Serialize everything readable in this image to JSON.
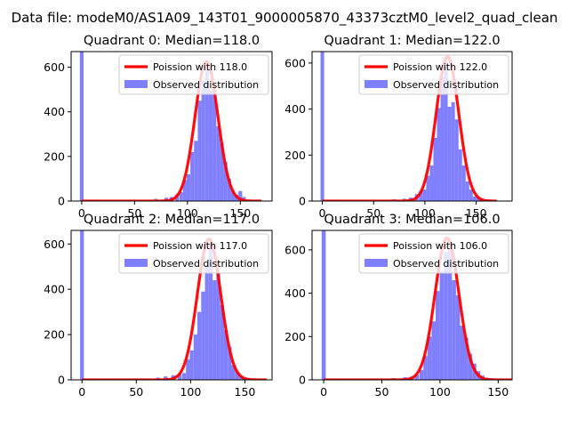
{
  "suptitle": "Data file: modeM0/AS1A09_143T01_9000005870_43373cztM0_level2_quad_clean",
  "colors": {
    "poisson": "#ff0000",
    "observed": "#8080ff"
  },
  "chart_data": [
    {
      "type": "bar",
      "title": "Quadrant 0: Median=118.0",
      "xlim": [
        -10,
        180
      ],
      "ylim": [
        0,
        670
      ],
      "xticks": [
        0,
        50,
        100,
        150
      ],
      "yticks": [
        0,
        200,
        400,
        600
      ],
      "legend": [
        "Poission with 118.0",
        "Observed distribution"
      ],
      "legend_position": "top-right",
      "median": 118,
      "series": [
        {
          "name": "Observed distribution",
          "type": "histogram",
          "bin_width": 3.5,
          "bins": [
            {
              "x": 0,
              "y": 680
            },
            {
              "x": 70,
              "y": 10
            },
            {
              "x": 80,
              "y": 15
            },
            {
              "x": 85,
              "y": 18
            },
            {
              "x": 90,
              "y": 30
            },
            {
              "x": 94,
              "y": 40
            },
            {
              "x": 97.5,
              "y": 95
            },
            {
              "x": 101,
              "y": 120
            },
            {
              "x": 104.5,
              "y": 220
            },
            {
              "x": 108,
              "y": 270
            },
            {
              "x": 111.5,
              "y": 450
            },
            {
              "x": 115,
              "y": 540
            },
            {
              "x": 118.5,
              "y": 590
            },
            {
              "x": 122,
              "y": 495
            },
            {
              "x": 125.5,
              "y": 485
            },
            {
              "x": 129,
              "y": 335
            },
            {
              "x": 132.5,
              "y": 260
            },
            {
              "x": 136,
              "y": 175
            },
            {
              "x": 139.5,
              "y": 100
            },
            {
              "x": 143,
              "y": 45
            },
            {
              "x": 146.5,
              "y": 28
            },
            {
              "x": 150,
              "y": 45
            },
            {
              "x": 153.5,
              "y": 18
            }
          ]
        },
        {
          "name": "Poission with 118.0",
          "type": "line",
          "peak": 625,
          "sigma": 10.86
        }
      ]
    },
    {
      "type": "bar",
      "title": "Quadrant 1: Median=122.0",
      "xlim": [
        -10,
        185
      ],
      "ylim": [
        0,
        650
      ],
      "xticks": [
        0,
        50,
        100,
        150
      ],
      "yticks": [
        0,
        200,
        400,
        600
      ],
      "legend": [
        "Poission with 122.0",
        "Observed distribution"
      ],
      "legend_position": "top-right",
      "median": 122,
      "series": [
        {
          "name": "Observed distribution",
          "type": "histogram",
          "bin_width": 3.5,
          "bins": [
            {
              "x": 0,
              "y": 660
            },
            {
              "x": 70,
              "y": 8
            },
            {
              "x": 80,
              "y": 10
            },
            {
              "x": 86,
              "y": 15
            },
            {
              "x": 92,
              "y": 30
            },
            {
              "x": 96,
              "y": 45
            },
            {
              "x": 99.5,
              "y": 50
            },
            {
              "x": 103,
              "y": 110
            },
            {
              "x": 106.5,
              "y": 155
            },
            {
              "x": 110,
              "y": 275
            },
            {
              "x": 113.5,
              "y": 405
            },
            {
              "x": 117,
              "y": 540
            },
            {
              "x": 120.5,
              "y": 610
            },
            {
              "x": 124,
              "y": 410
            },
            {
              "x": 127.5,
              "y": 430
            },
            {
              "x": 131,
              "y": 355
            },
            {
              "x": 134.5,
              "y": 225
            },
            {
              "x": 138,
              "y": 155
            },
            {
              "x": 141.5,
              "y": 85
            },
            {
              "x": 145,
              "y": 50
            },
            {
              "x": 148.5,
              "y": 20
            },
            {
              "x": 152,
              "y": 18
            },
            {
              "x": 155.5,
              "y": 10
            }
          ]
        },
        {
          "name": "Poission with 122.0",
          "type": "line",
          "peak": 628,
          "sigma": 11.05
        }
      ]
    },
    {
      "type": "bar",
      "title": "Quadrant 2: Median=117.0",
      "xlim": [
        -10,
        175
      ],
      "ylim": [
        0,
        660
      ],
      "xticks": [
        0,
        50,
        100,
        150
      ],
      "yticks": [
        0,
        200,
        400,
        600
      ],
      "legend": [
        "Poission with 117.0",
        "Observed distribution"
      ],
      "legend_position": "top-right",
      "median": 117,
      "series": [
        {
          "name": "Observed distribution",
          "type": "histogram",
          "bin_width": 3.5,
          "bins": [
            {
              "x": 0,
              "y": 670
            },
            {
              "x": 70,
              "y": 10
            },
            {
              "x": 77,
              "y": 15
            },
            {
              "x": 84,
              "y": 20
            },
            {
              "x": 90,
              "y": 25
            },
            {
              "x": 94,
              "y": 30
            },
            {
              "x": 97.5,
              "y": 90
            },
            {
              "x": 101,
              "y": 130
            },
            {
              "x": 104.5,
              "y": 200
            },
            {
              "x": 108,
              "y": 300
            },
            {
              "x": 111.5,
              "y": 390
            },
            {
              "x": 115,
              "y": 510
            },
            {
              "x": 118.5,
              "y": 600
            },
            {
              "x": 122,
              "y": 440
            },
            {
              "x": 125.5,
              "y": 470
            },
            {
              "x": 129,
              "y": 330
            },
            {
              "x": 132.5,
              "y": 220
            },
            {
              "x": 136,
              "y": 145
            },
            {
              "x": 139.5,
              "y": 65
            },
            {
              "x": 143,
              "y": 35
            },
            {
              "x": 146.5,
              "y": 18
            },
            {
              "x": 150,
              "y": 10
            },
            {
              "x": 153.5,
              "y": 8
            }
          ]
        },
        {
          "name": "Poission with 117.0",
          "type": "line",
          "peak": 622,
          "sigma": 10.82
        }
      ]
    },
    {
      "type": "bar",
      "title": "Quadrant 3: Median=106.0",
      "xlim": [
        -10,
        162
      ],
      "ylim": [
        0,
        690
      ],
      "xticks": [
        0,
        50,
        100,
        150
      ],
      "yticks": [
        0,
        200,
        400,
        600
      ],
      "legend": [
        "Poission with 106.0",
        "Observed distribution"
      ],
      "legend_position": "top-right",
      "median": 106,
      "series": [
        {
          "name": "Observed distribution",
          "type": "histogram",
          "bin_width": 3.5,
          "bins": [
            {
              "x": 0,
              "y": 690
            },
            {
              "x": 60,
              "y": 8
            },
            {
              "x": 70,
              "y": 12
            },
            {
              "x": 76,
              "y": 15
            },
            {
              "x": 80,
              "y": 25
            },
            {
              "x": 84,
              "y": 45
            },
            {
              "x": 87.5,
              "y": 110
            },
            {
              "x": 91,
              "y": 200
            },
            {
              "x": 94.5,
              "y": 270
            },
            {
              "x": 98,
              "y": 410
            },
            {
              "x": 101.5,
              "y": 500
            },
            {
              "x": 105,
              "y": 590
            },
            {
              "x": 108.5,
              "y": 640
            },
            {
              "x": 112,
              "y": 460
            },
            {
              "x": 115.5,
              "y": 390
            },
            {
              "x": 119,
              "y": 250
            },
            {
              "x": 122.5,
              "y": 195
            },
            {
              "x": 126,
              "y": 120
            },
            {
              "x": 129.5,
              "y": 75
            },
            {
              "x": 133,
              "y": 40
            },
            {
              "x": 136.5,
              "y": 20
            },
            {
              "x": 140,
              "y": 10
            },
            {
              "x": 143.5,
              "y": 8
            }
          ]
        },
        {
          "name": "Poission with 106.0",
          "type": "line",
          "peak": 655,
          "sigma": 10.3
        }
      ]
    }
  ]
}
